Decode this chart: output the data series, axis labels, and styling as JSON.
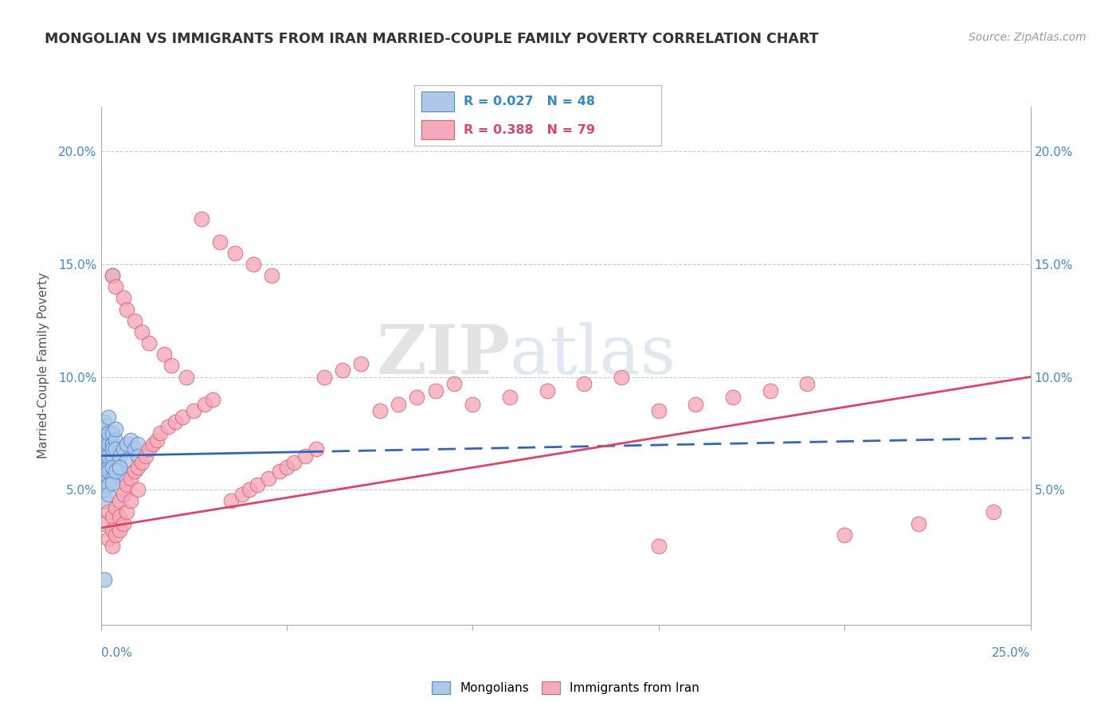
{
  "title": "MONGOLIAN VS IMMIGRANTS FROM IRAN MARRIED-COUPLE FAMILY POVERTY CORRELATION CHART",
  "source": "Source: ZipAtlas.com",
  "ylabel": "Married-Couple Family Poverty",
  "xlim": [
    0.0,
    0.25
  ],
  "ylim": [
    -0.01,
    0.22
  ],
  "yticks": [
    0.05,
    0.1,
    0.15,
    0.2
  ],
  "ytick_labels": [
    "5.0%",
    "10.0%",
    "15.0%",
    "20.0%"
  ],
  "blue_label": "Mongolians",
  "pink_label": "Immigrants from Iran",
  "blue_R": "0.027",
  "blue_N": "48",
  "pink_R": "0.388",
  "pink_N": "79",
  "blue_color": "#adc8e8",
  "pink_color": "#f5aabb",
  "blue_edge": "#5588cc",
  "pink_edge": "#e06070",
  "regression_blue": "#3366bb",
  "regression_pink": "#dd4466",
  "blue_scatter_x": [
    0.001,
    0.001,
    0.001,
    0.001,
    0.001,
    0.001,
    0.001,
    0.001,
    0.001,
    0.001,
    0.002,
    0.002,
    0.002,
    0.002,
    0.002,
    0.002,
    0.002,
    0.002,
    0.002,
    0.002,
    0.003,
    0.003,
    0.003,
    0.003,
    0.003,
    0.003,
    0.003,
    0.004,
    0.004,
    0.004,
    0.005,
    0.005,
    0.006,
    0.006,
    0.007,
    0.007,
    0.008,
    0.009,
    0.01,
    0.01,
    0.001,
    0.001,
    0.002,
    0.002,
    0.003,
    0.004,
    0.005,
    0.001
  ],
  "blue_scatter_y": [
    0.065,
    0.07,
    0.075,
    0.068,
    0.062,
    0.058,
    0.072,
    0.078,
    0.08,
    0.055,
    0.063,
    0.068,
    0.073,
    0.06,
    0.055,
    0.082,
    0.07,
    0.058,
    0.065,
    0.075,
    0.07,
    0.065,
    0.06,
    0.055,
    0.075,
    0.068,
    0.145,
    0.072,
    0.068,
    0.077,
    0.06,
    0.065,
    0.068,
    0.055,
    0.07,
    0.063,
    0.072,
    0.068,
    0.07,
    0.065,
    0.045,
    0.05,
    0.052,
    0.048,
    0.053,
    0.058,
    0.06,
    0.01
  ],
  "pink_scatter_x": [
    0.001,
    0.002,
    0.002,
    0.003,
    0.003,
    0.003,
    0.004,
    0.004,
    0.005,
    0.005,
    0.005,
    0.006,
    0.006,
    0.007,
    0.007,
    0.008,
    0.008,
    0.009,
    0.01,
    0.01,
    0.011,
    0.012,
    0.013,
    0.014,
    0.015,
    0.016,
    0.018,
    0.02,
    0.022,
    0.025,
    0.028,
    0.03,
    0.035,
    0.038,
    0.04,
    0.042,
    0.045,
    0.048,
    0.05,
    0.052,
    0.055,
    0.058,
    0.06,
    0.065,
    0.07,
    0.075,
    0.08,
    0.085,
    0.09,
    0.095,
    0.1,
    0.11,
    0.12,
    0.13,
    0.14,
    0.15,
    0.16,
    0.17,
    0.18,
    0.19,
    0.003,
    0.004,
    0.006,
    0.007,
    0.009,
    0.011,
    0.013,
    0.017,
    0.019,
    0.023,
    0.027,
    0.032,
    0.036,
    0.041,
    0.046,
    0.15,
    0.2,
    0.22,
    0.24
  ],
  "pink_scatter_y": [
    0.035,
    0.04,
    0.028,
    0.038,
    0.032,
    0.025,
    0.042,
    0.03,
    0.045,
    0.038,
    0.032,
    0.048,
    0.035,
    0.052,
    0.04,
    0.055,
    0.045,
    0.058,
    0.06,
    0.05,
    0.062,
    0.065,
    0.068,
    0.07,
    0.072,
    0.075,
    0.078,
    0.08,
    0.082,
    0.085,
    0.088,
    0.09,
    0.045,
    0.048,
    0.05,
    0.052,
    0.055,
    0.058,
    0.06,
    0.062,
    0.065,
    0.068,
    0.1,
    0.103,
    0.106,
    0.085,
    0.088,
    0.091,
    0.094,
    0.097,
    0.088,
    0.091,
    0.094,
    0.097,
    0.1,
    0.085,
    0.088,
    0.091,
    0.094,
    0.097,
    0.145,
    0.14,
    0.135,
    0.13,
    0.125,
    0.12,
    0.115,
    0.11,
    0.105,
    0.1,
    0.17,
    0.16,
    0.155,
    0.15,
    0.145,
    0.025,
    0.03,
    0.035,
    0.04
  ]
}
